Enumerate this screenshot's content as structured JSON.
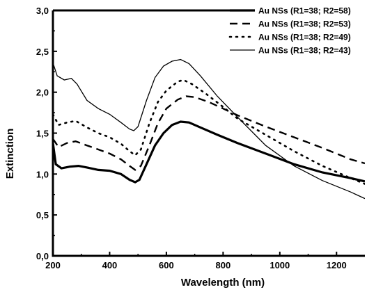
{
  "chart_data": {
    "type": "line",
    "xlabel": "Wavelength (nm)",
    "ylabel": "Extinction",
    "xlim": [
      200,
      1300
    ],
    "ylim": [
      0.0,
      3.0
    ],
    "x_ticks": [
      "200",
      "400",
      "600",
      "800",
      "1000",
      "1200"
    ],
    "y_ticks": [
      "0,0",
      "0,5",
      "1,0",
      "1,5",
      "2,0",
      "2,5",
      "3,0"
    ],
    "grid": false,
    "legend_position": "top-right",
    "series": [
      {
        "name": "Au NSs (R1=38; R2=58)",
        "style": "solid-thick",
        "points": [
          [
            200,
            1.38
          ],
          [
            210,
            1.12
          ],
          [
            230,
            1.07
          ],
          [
            260,
            1.09
          ],
          [
            290,
            1.1
          ],
          [
            320,
            1.08
          ],
          [
            360,
            1.05
          ],
          [
            400,
            1.04
          ],
          [
            440,
            1.0
          ],
          [
            470,
            0.93
          ],
          [
            490,
            0.9
          ],
          [
            505,
            0.93
          ],
          [
            530,
            1.12
          ],
          [
            560,
            1.35
          ],
          [
            590,
            1.5
          ],
          [
            620,
            1.6
          ],
          [
            650,
            1.64
          ],
          [
            680,
            1.63
          ],
          [
            720,
            1.57
          ],
          [
            780,
            1.48
          ],
          [
            850,
            1.38
          ],
          [
            950,
            1.25
          ],
          [
            1050,
            1.12
          ],
          [
            1150,
            1.02
          ],
          [
            1250,
            0.95
          ],
          [
            1300,
            0.91
          ]
        ]
      },
      {
        "name": "Au NSs (R1=38; R2=53)",
        "style": "dashed",
        "points": [
          [
            200,
            1.43
          ],
          [
            220,
            1.33
          ],
          [
            250,
            1.38
          ],
          [
            280,
            1.4
          ],
          [
            320,
            1.35
          ],
          [
            360,
            1.3
          ],
          [
            400,
            1.25
          ],
          [
            440,
            1.18
          ],
          [
            470,
            1.1
          ],
          [
            490,
            1.05
          ],
          [
            510,
            1.1
          ],
          [
            540,
            1.35
          ],
          [
            570,
            1.62
          ],
          [
            600,
            1.8
          ],
          [
            640,
            1.91
          ],
          [
            670,
            1.95
          ],
          [
            700,
            1.94
          ],
          [
            750,
            1.88
          ],
          [
            800,
            1.8
          ],
          [
            850,
            1.72
          ],
          [
            950,
            1.58
          ],
          [
            1050,
            1.45
          ],
          [
            1150,
            1.32
          ],
          [
            1250,
            1.18
          ],
          [
            1300,
            1.13
          ]
        ]
      },
      {
        "name": "Au NSs (R1=38; R2=49)",
        "style": "dotted",
        "points": [
          [
            200,
            1.73
          ],
          [
            220,
            1.6
          ],
          [
            250,
            1.63
          ],
          [
            280,
            1.65
          ],
          [
            320,
            1.57
          ],
          [
            360,
            1.5
          ],
          [
            400,
            1.45
          ],
          [
            440,
            1.37
          ],
          [
            470,
            1.28
          ],
          [
            490,
            1.23
          ],
          [
            510,
            1.3
          ],
          [
            540,
            1.62
          ],
          [
            570,
            1.88
          ],
          [
            600,
            2.02
          ],
          [
            640,
            2.13
          ],
          [
            660,
            2.15
          ],
          [
            690,
            2.1
          ],
          [
            740,
            1.98
          ],
          [
            800,
            1.82
          ],
          [
            850,
            1.68
          ],
          [
            950,
            1.48
          ],
          [
            1050,
            1.28
          ],
          [
            1150,
            1.1
          ],
          [
            1250,
            0.95
          ],
          [
            1300,
            0.88
          ]
        ]
      },
      {
        "name": "Au NSs (R1=38; R2=43)",
        "style": "solid-thin",
        "points": [
          [
            200,
            2.36
          ],
          [
            215,
            2.2
          ],
          [
            240,
            2.15
          ],
          [
            265,
            2.17
          ],
          [
            285,
            2.1
          ],
          [
            320,
            1.9
          ],
          [
            360,
            1.8
          ],
          [
            400,
            1.73
          ],
          [
            440,
            1.63
          ],
          [
            470,
            1.55
          ],
          [
            485,
            1.53
          ],
          [
            500,
            1.58
          ],
          [
            530,
            1.9
          ],
          [
            560,
            2.18
          ],
          [
            590,
            2.32
          ],
          [
            620,
            2.38
          ],
          [
            650,
            2.4
          ],
          [
            680,
            2.35
          ],
          [
            720,
            2.2
          ],
          [
            780,
            1.95
          ],
          [
            850,
            1.7
          ],
          [
            950,
            1.35
          ],
          [
            1050,
            1.1
          ],
          [
            1150,
            0.92
          ],
          [
            1250,
            0.78
          ],
          [
            1300,
            0.7
          ]
        ]
      }
    ]
  }
}
